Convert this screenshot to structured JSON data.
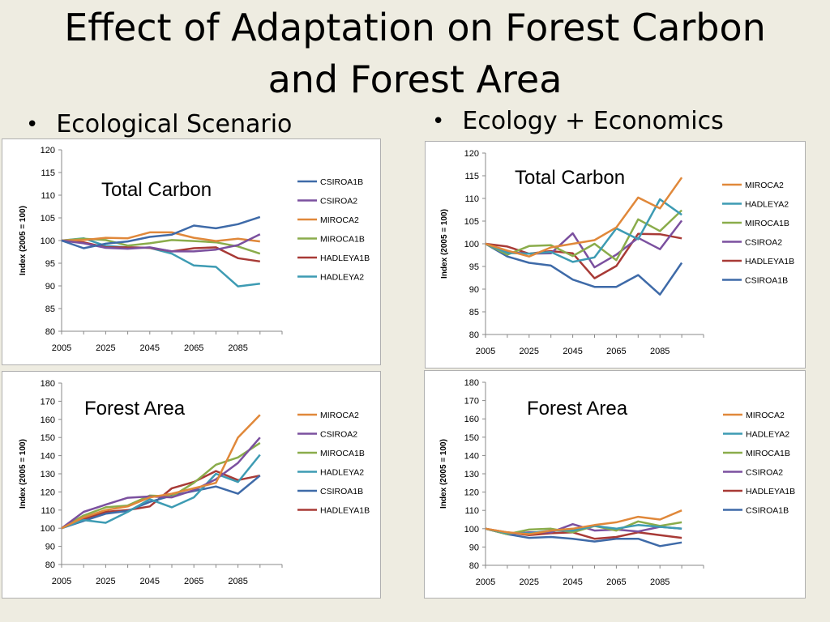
{
  "title_line1": "Effect of Adaptation on Forest Carbon",
  "title_line2": "and Forest Area",
  "bullets": {
    "left": "Ecological Scenario",
    "right": "Ecology + Economics",
    "symbol": "•"
  },
  "colors": {
    "CSIROA1B": "#3e6aa8",
    "CSIROA2": "#7b509f",
    "MIROCA2": "#e0883a",
    "MIROCA1B": "#8aac4b",
    "HADLEYA1B": "#a83a36",
    "HADLEYA2": "#3d9bb3"
  },
  "chart_data": [
    {
      "id": "eco-carbon",
      "type": "line",
      "title": "Total Carbon",
      "ylabel": "Index (2005 = 100)",
      "ylim": [
        80,
        120
      ],
      "yticks": [
        80,
        85,
        90,
        95,
        100,
        105,
        110,
        115,
        120
      ],
      "xlim": [
        2005,
        2105
      ],
      "xticks": [
        2005,
        2025,
        2045,
        2065,
        2085
      ],
      "legend_position": "right",
      "x": [
        2005,
        2015,
        2025,
        2035,
        2045,
        2055,
        2065,
        2075,
        2085,
        2095
      ],
      "series": [
        {
          "name": "CSIROA1B",
          "values": [
            100,
            98.3,
            99.3,
            99.8,
            100.8,
            101.3,
            103.3,
            102.7,
            103.6,
            105.2
          ]
        },
        {
          "name": "CSIROA2",
          "values": [
            100,
            99.4,
            98.4,
            98.2,
            98.5,
            97.6,
            97.6,
            98.0,
            99.0,
            101.4
          ]
        },
        {
          "name": "MIROCA2",
          "values": [
            100,
            100.1,
            100.6,
            100.5,
            101.8,
            101.8,
            100.6,
            99.9,
            100.4,
            99.8
          ]
        },
        {
          "name": "MIROCA1B",
          "values": [
            100,
            100.4,
            100.1,
            98.9,
            99.4,
            100.1,
            99.9,
            99.6,
            98.7,
            97.1
          ]
        },
        {
          "name": "HADLEYA1B",
          "values": [
            100,
            99.6,
            98.5,
            98.5,
            98.4,
            97.6,
            98.3,
            98.5,
            96.1,
            95.4
          ]
        },
        {
          "name": "HADLEYA2",
          "values": [
            100,
            100.5,
            98.8,
            98.5,
            98.4,
            97.1,
            94.5,
            94.2,
            89.9,
            90.5
          ]
        }
      ]
    },
    {
      "id": "econ-carbon",
      "type": "line",
      "title": "Total Carbon",
      "ylabel": "Index (2005 = 100)",
      "ylim": [
        80,
        120
      ],
      "yticks": [
        80,
        85,
        90,
        95,
        100,
        105,
        110,
        115,
        120
      ],
      "xlim": [
        2005,
        2105
      ],
      "xticks": [
        2005,
        2025,
        2045,
        2065,
        2085
      ],
      "legend_position": "right",
      "x": [
        2005,
        2015,
        2025,
        2035,
        2045,
        2055,
        2065,
        2075,
        2085,
        2095
      ],
      "series": [
        {
          "name": "MIROCA2",
          "values": [
            100,
            98.5,
            97.2,
            99.2,
            100.0,
            100.8,
            103.6,
            110.2,
            107.8,
            114.6
          ]
        },
        {
          "name": "HADLEYA2",
          "values": [
            100,
            98.0,
            97.8,
            98.2,
            96.0,
            97.0,
            103.4,
            101.0,
            109.8,
            106.4
          ]
        },
        {
          "name": "MIROCA1B",
          "values": [
            100,
            97.6,
            99.5,
            99.7,
            97.3,
            100.0,
            96.4,
            105.4,
            102.8,
            107.4
          ]
        },
        {
          "name": "CSIROA2",
          "values": [
            100,
            98.2,
            97.8,
            97.9,
            102.3,
            94.8,
            97.6,
            101.3,
            98.8,
            105.1
          ]
        },
        {
          "name": "HADLEYA1B",
          "values": [
            100,
            99.4,
            97.8,
            98.4,
            97.9,
            92.4,
            95.1,
            102.2,
            102.1,
            101.2
          ]
        },
        {
          "name": "CSIROA1B",
          "values": [
            100,
            97.2,
            95.8,
            95.2,
            92.1,
            90.5,
            90.5,
            93.1,
            88.8,
            95.8
          ]
        }
      ]
    },
    {
      "id": "eco-area",
      "type": "line",
      "title": "Forest Area",
      "ylabel": "Index (2005 = 100)",
      "ylim": [
        80,
        180
      ],
      "yticks": [
        80,
        90,
        100,
        110,
        120,
        130,
        140,
        150,
        160,
        170,
        180
      ],
      "xlim": [
        2005,
        2105
      ],
      "xticks": [
        2005,
        2025,
        2045,
        2065,
        2085
      ],
      "legend_position": "right",
      "x": [
        2005,
        2015,
        2025,
        2035,
        2045,
        2055,
        2065,
        2075,
        2085,
        2095
      ],
      "series": [
        {
          "name": "MIROCA2",
          "values": [
            100,
            106,
            110,
            112,
            117,
            119,
            122,
            125,
            150,
            162.5
          ]
        },
        {
          "name": "CSIROA2",
          "values": [
            100,
            109,
            113,
            116.8,
            117.5,
            117,
            121,
            127,
            136,
            150
          ]
        },
        {
          "name": "MIROCA1B",
          "values": [
            100,
            107,
            111.5,
            112.5,
            118,
            117.5,
            125,
            135,
            139,
            147
          ]
        },
        {
          "name": "HADLEYA2",
          "values": [
            100,
            104.5,
            103,
            109,
            116,
            111.5,
            117,
            130,
            125.5,
            140.5
          ]
        },
        {
          "name": "CSIROA1B",
          "values": [
            100,
            104,
            108,
            109.5,
            114.5,
            118,
            120.5,
            123,
            119,
            129
          ]
        },
        {
          "name": "HADLEYA1B",
          "values": [
            100,
            105,
            109,
            110,
            112,
            122,
            125.5,
            131.5,
            126.5,
            129
          ]
        }
      ]
    },
    {
      "id": "econ-area",
      "type": "line",
      "title": "Forest Area",
      "ylabel": "Index (2005 = 100)",
      "ylim": [
        80,
        180
      ],
      "yticks": [
        80,
        90,
        100,
        110,
        120,
        130,
        140,
        150,
        160,
        170,
        180
      ],
      "xlim": [
        2005,
        2105
      ],
      "xticks": [
        2005,
        2025,
        2045,
        2065,
        2085
      ],
      "legend_position": "right",
      "x": [
        2005,
        2015,
        2025,
        2035,
        2045,
        2055,
        2065,
        2075,
        2085,
        2095
      ],
      "series": [
        {
          "name": "MIROCA2",
          "values": [
            100,
            98,
            97,
            99,
            100,
            102,
            103.5,
            106.5,
            105,
            110
          ]
        },
        {
          "name": "HADLEYA2",
          "values": [
            100,
            97.5,
            97.5,
            99,
            99,
            101.5,
            100,
            102,
            101,
            100
          ]
        },
        {
          "name": "MIROCA1B",
          "values": [
            100,
            97,
            99.5,
            100,
            98,
            101.5,
            99,
            104,
            101.5,
            103.5
          ]
        },
        {
          "name": "CSIROA2",
          "values": [
            100,
            97,
            98,
            98,
            102.5,
            99,
            99.5,
            98.5,
            101,
            100
          ]
        },
        {
          "name": "HADLEYA1B",
          "values": [
            100,
            98,
            96.5,
            97.5,
            98,
            94.5,
            95.5,
            98,
            96.5,
            95
          ]
        },
        {
          "name": "CSIROA1B",
          "values": [
            100,
            97,
            95,
            95.5,
            94.5,
            93,
            94.5,
            94.5,
            90.5,
            92.5
          ]
        }
      ]
    }
  ]
}
